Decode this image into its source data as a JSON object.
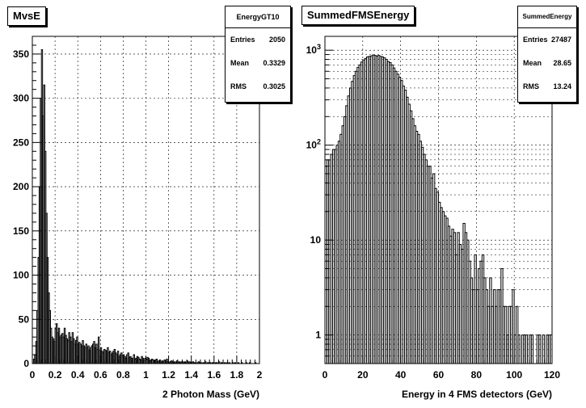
{
  "chart_data": [
    {
      "type": "bar",
      "subtype": "histogram",
      "title": "MvsE",
      "xlabel": "2 Photon Mass (GeV)",
      "ylabel": "",
      "xlim": [
        0,
        2
      ],
      "ylim": [
        0,
        370
      ],
      "yscale": "linear",
      "grid": true,
      "xticks": [
        "0",
        "0.2",
        "0.4",
        "0.6",
        "0.8",
        "1",
        "1.2",
        "1.4",
        "1.6",
        "1.8",
        "2"
      ],
      "yticks": [
        "0",
        "50",
        "100",
        "150",
        "200",
        "250",
        "300",
        "350"
      ],
      "stats": {
        "name": "EnergyGT10",
        "entries": "2050",
        "mean": "0.3329",
        "rms": "0.3025"
      },
      "bin_width": 0.01,
      "values": [
        0,
        5,
        10,
        25,
        60,
        120,
        200,
        300,
        355,
        280,
        315,
        240,
        170,
        120,
        80,
        60,
        40,
        30,
        28,
        25,
        40,
        45,
        35,
        40,
        30,
        32,
        34,
        30,
        40,
        32,
        28,
        26,
        35,
        30,
        25,
        35,
        28,
        22,
        26,
        30,
        22,
        24,
        22,
        20,
        26,
        20,
        18,
        22,
        18,
        20,
        15,
        18,
        20,
        22,
        25,
        18,
        22,
        16,
        30,
        15,
        18,
        14,
        12,
        16,
        15,
        14,
        18,
        12,
        14,
        10,
        12,
        14,
        16,
        12,
        10,
        14,
        8,
        10,
        12,
        9,
        10,
        8,
        6,
        10,
        12,
        7,
        8,
        6,
        6,
        10,
        5,
        6,
        8,
        7,
        5,
        4,
        8,
        6,
        4,
        6,
        5,
        7,
        6,
        4,
        3,
        5,
        4,
        3,
        4,
        5,
        2,
        3,
        4,
        2,
        3,
        2,
        4,
        3,
        5,
        2,
        1,
        2,
        3,
        2,
        1,
        2,
        1,
        3,
        1,
        2,
        1,
        2,
        2,
        1,
        2,
        1,
        3,
        1,
        2,
        1,
        1,
        2,
        1,
        1,
        0,
        1,
        2,
        1,
        1,
        0,
        1,
        1,
        2,
        0,
        1,
        1,
        1,
        0,
        1,
        1,
        0,
        1,
        1,
        0,
        2,
        0,
        1,
        1,
        0,
        1,
        0,
        1,
        0,
        1,
        0,
        0,
        1,
        0,
        1,
        0,
        0,
        1,
        0,
        0,
        1,
        0,
        0,
        0,
        1,
        0,
        0,
        1,
        0,
        0,
        0,
        0,
        1,
        0,
        0,
        0
      ]
    },
    {
      "type": "bar",
      "subtype": "histogram",
      "title": "SummedFMSEnergy",
      "xlabel": "Energy in 4 FMS detectors (GeV)",
      "ylabel": "",
      "xlim": [
        0,
        120
      ],
      "ylim": [
        0.5,
        1400
      ],
      "yscale": "log",
      "grid": true,
      "xticks": [
        "0",
        "20",
        "40",
        "60",
        "80",
        "100",
        "120"
      ],
      "yticks": [
        "1",
        "10",
        "10^2",
        "10^3"
      ],
      "stats": {
        "name": "SummedEnergy",
        "entries": "27487",
        "mean": "28.65",
        "rms": "13.24"
      },
      "bin_width": 1,
      "values": [
        60,
        70,
        70,
        80,
        90,
        90,
        100,
        110,
        130,
        160,
        200,
        260,
        330,
        400,
        470,
        540,
        600,
        660,
        700,
        750,
        790,
        820,
        850,
        860,
        870,
        890,
        880,
        870,
        880,
        860,
        850,
        830,
        800,
        760,
        740,
        700,
        650,
        600,
        560,
        520,
        480,
        420,
        380,
        320,
        270,
        230,
        190,
        160,
        140,
        130,
        110,
        95,
        80,
        70,
        60,
        60,
        45,
        50,
        35,
        32,
        25,
        22,
        20,
        18,
        17,
        14,
        11,
        13,
        12,
        7,
        12,
        9,
        8,
        15,
        12,
        10,
        6,
        4,
        3,
        7,
        3,
        5,
        6,
        7,
        4,
        3,
        2,
        4,
        2,
        3,
        2,
        3,
        3,
        5,
        2,
        2,
        1,
        2,
        2,
        3,
        1,
        2,
        1,
        0,
        1,
        1,
        1,
        0,
        1,
        1,
        0,
        0,
        1,
        1,
        0,
        1,
        0,
        1,
        1,
        1
      ]
    }
  ]
}
